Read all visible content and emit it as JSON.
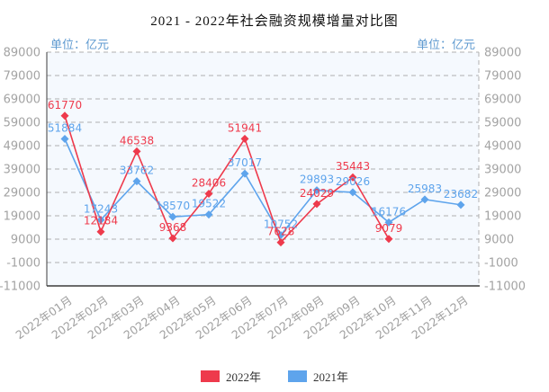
{
  "title": "2021 - 2022年社会融资规模增量对比图",
  "unit_label_left": "单位：亿元",
  "unit_label_right": "单位：亿元",
  "legend": {
    "items": [
      {
        "label": "2022年",
        "color": "#ee3a4c"
      },
      {
        "label": "2021年",
        "color": "#5ea4ec"
      }
    ]
  },
  "colors": {
    "grid": "#b0b0b0",
    "axis": "#3c3c3c",
    "tick_text": "#a3a3a3",
    "x_tick_text": "#a0a0a0",
    "unit_text": "#5f9ad0",
    "plot_background": "#f5f9fe"
  },
  "chart_data": {
    "type": "line",
    "categories": [
      "2022年01月",
      "2022年02月",
      "2022年03月",
      "2022年04月",
      "2022年05月",
      "2022年06月",
      "2022年07月",
      "2022年08月",
      "2022年09月",
      "2022年10月",
      "2022年11月",
      "2022年12月"
    ],
    "series": [
      {
        "name": "2022年",
        "color": "#ee3a4c",
        "values": [
          61770,
          12184,
          46538,
          9368,
          28406,
          51941,
          7628,
          24029,
          35443,
          9079,
          null,
          null
        ]
      },
      {
        "name": "2021年",
        "color": "#5ea4ec",
        "values": [
          51884,
          17243,
          33762,
          18570,
          19522,
          37017,
          10752,
          29893,
          29026,
          16176,
          25983,
          23682
        ]
      }
    ],
    "title": "2021 - 2022年社会融资规模增量对比图",
    "xlabel": "",
    "ylabel": "单位：亿元",
    "ylim": [
      -11000,
      89000
    ],
    "yticks": [
      89000,
      79000,
      69000,
      59000,
      49000,
      39000,
      29000,
      19000,
      9000,
      -1000,
      -11000
    ],
    "grid": true,
    "grid_style": "dashed",
    "legend_position": "bottom",
    "marker": "diamond"
  }
}
